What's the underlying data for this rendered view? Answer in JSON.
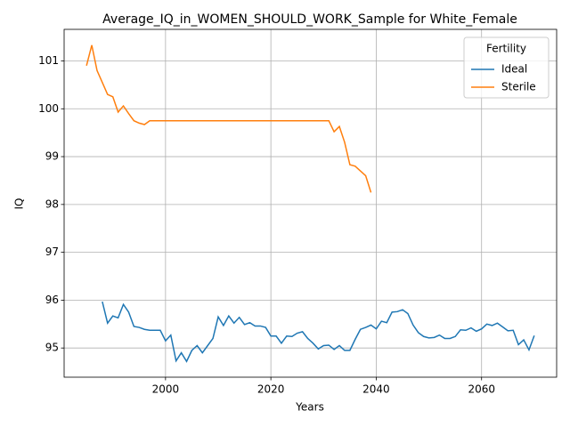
{
  "chart_data": {
    "type": "line",
    "title": "Average_IQ_in_WOMEN_SHOULD_WORK_Sample for White_Female",
    "xlabel": "Years",
    "ylabel": "IQ",
    "x": [
      1985,
      1986,
      1987,
      1988,
      1989,
      1990,
      1991,
      1992,
      1993,
      1994,
      1995,
      1996,
      1997,
      1998,
      1999,
      2000,
      2001,
      2002,
      2003,
      2004,
      2005,
      2006,
      2007,
      2008,
      2009,
      2010,
      2011,
      2012,
      2013,
      2014,
      2015,
      2016,
      2017,
      2018,
      2019,
      2020,
      2021,
      2022,
      2023,
      2024,
      2025,
      2026,
      2027,
      2028,
      2029,
      2030,
      2031,
      2032,
      2033,
      2034,
      2035,
      2036,
      2037,
      2038,
      2039,
      2040,
      2041,
      2042,
      2043,
      2044,
      2045,
      2046,
      2047,
      2048,
      2049,
      2050,
      2051,
      2052,
      2053,
      2054,
      2055,
      2056,
      2057,
      2058,
      2059,
      2060,
      2061,
      2062,
      2063,
      2064,
      2065,
      2066,
      2067,
      2068,
      2069,
      2070
    ],
    "series": [
      {
        "name": "Ideal",
        "color": "#1f77b4",
        "values": [
          null,
          null,
          null,
          95.97,
          95.52,
          95.67,
          95.63,
          95.91,
          95.75,
          95.45,
          95.43,
          95.39,
          95.37,
          95.37,
          95.37,
          95.15,
          95.27,
          94.73,
          94.9,
          94.72,
          94.95,
          95.05,
          94.9,
          95.05,
          95.2,
          95.65,
          95.47,
          95.67,
          95.52,
          95.64,
          95.49,
          95.53,
          95.46,
          95.46,
          95.43,
          95.25,
          95.25,
          95.1,
          95.25,
          95.24,
          95.31,
          95.34,
          95.2,
          95.1,
          94.98,
          95.05,
          95.06,
          94.97,
          95.05,
          94.95,
          94.95,
          95.18,
          95.39,
          95.43,
          95.48,
          95.4,
          95.56,
          95.53,
          95.75,
          95.76,
          95.8,
          95.72,
          95.48,
          95.32,
          95.24,
          95.21,
          95.22,
          95.27,
          95.2,
          95.2,
          95.24,
          95.38,
          95.37,
          95.42,
          95.35,
          95.4,
          95.5,
          95.47,
          95.52,
          95.44,
          95.36,
          95.37,
          95.07,
          95.17,
          94.96,
          95.26
        ]
      },
      {
        "name": "Sterile",
        "color": "#ff7f0e",
        "values": [
          100.9,
          101.33,
          100.8,
          100.55,
          100.3,
          100.25,
          99.93,
          100.06,
          99.9,
          99.75,
          99.7,
          99.67,
          99.75,
          99.75,
          99.75,
          99.75,
          99.75,
          99.75,
          99.75,
          99.75,
          99.75,
          99.75,
          99.75,
          99.75,
          99.75,
          99.75,
          99.75,
          99.75,
          99.75,
          99.75,
          99.75,
          99.75,
          99.75,
          99.75,
          99.75,
          99.75,
          99.75,
          99.75,
          99.75,
          99.75,
          99.75,
          99.75,
          99.75,
          99.75,
          99.75,
          99.75,
          99.75,
          99.52,
          99.63,
          99.3,
          98.83,
          98.8,
          98.7,
          98.6,
          98.25,
          null,
          null,
          null,
          null,
          null,
          null,
          null,
          null,
          null,
          null,
          null,
          null,
          null,
          null,
          null,
          null,
          null,
          null,
          null,
          null,
          null,
          null,
          null,
          null,
          null,
          null,
          null,
          null,
          null,
          null,
          null
        ]
      }
    ],
    "xlim": [
      1980.75,
      2074.25
    ],
    "ylim": [
      94.39,
      101.66
    ],
    "xticks": [
      2000,
      2020,
      2040,
      2060
    ],
    "yticks": [
      95,
      96,
      97,
      98,
      99,
      100,
      101
    ],
    "grid": true,
    "legend_title": "Fertility",
    "legend": "upper right"
  }
}
